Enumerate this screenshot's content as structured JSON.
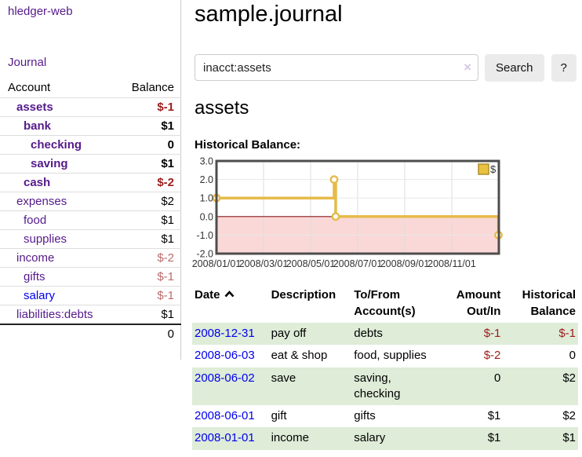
{
  "app": {
    "brand": "hledger-web",
    "nav_journal": "Journal"
  },
  "sidebar": {
    "header": {
      "account": "Account",
      "balance": "Balance"
    },
    "rows": [
      {
        "label": "assets",
        "indent": 1,
        "bold": true,
        "amount": "$-1",
        "amount_style": "neg",
        "link": "purple"
      },
      {
        "label": "bank",
        "indent": 2,
        "bold": true,
        "amount": "$1",
        "amount_style": "pos",
        "link": "purple"
      },
      {
        "label": "checking",
        "indent": 3,
        "bold": true,
        "amount": "0",
        "amount_style": "pos",
        "link": "purple"
      },
      {
        "label": "saving",
        "indent": 3,
        "bold": true,
        "amount": "$1",
        "amount_style": "pos",
        "link": "purple"
      },
      {
        "label": "cash",
        "indent": 2,
        "bold": true,
        "amount": "$-2",
        "amount_style": "neg",
        "link": "purple"
      },
      {
        "label": "expenses",
        "indent": 1,
        "bold": false,
        "amount": "$2",
        "amount_style": "pos",
        "link": "purple"
      },
      {
        "label": "food",
        "indent": 2,
        "bold": false,
        "amount": "$1",
        "amount_style": "pos",
        "link": "purple"
      },
      {
        "label": "supplies",
        "indent": 2,
        "bold": false,
        "amount": "$1",
        "amount_style": "pos",
        "link": "purple"
      },
      {
        "label": "income",
        "indent": 1,
        "bold": false,
        "amount": "$-2",
        "amount_style": "neg-soft",
        "link": "purple"
      },
      {
        "label": "gifts",
        "indent": 2,
        "bold": false,
        "amount": "$-1",
        "amount_style": "neg-soft",
        "link": "purple"
      },
      {
        "label": "salary",
        "indent": 2,
        "bold": false,
        "amount": "$-1",
        "amount_style": "neg-soft",
        "link": "blue"
      },
      {
        "label": "liabilities:debts",
        "indent": 1,
        "bold": false,
        "amount": "$1",
        "amount_style": "pos",
        "link": "purple"
      }
    ],
    "total": "0"
  },
  "header": {
    "title": "sample.journal"
  },
  "search": {
    "query": "inacct:assets",
    "clear_icon": "×",
    "button": "Search",
    "help_button": "?"
  },
  "account_view": {
    "title": "assets",
    "chart_label": "Historical Balance:"
  },
  "chart_data": {
    "type": "line",
    "step": true,
    "series": [
      {
        "name": "$",
        "points": [
          [
            "2008-01-01",
            1
          ],
          [
            "2008-06-01",
            2
          ],
          [
            "2008-06-03",
            0
          ],
          [
            "2008-12-31",
            -1
          ]
        ]
      }
    ],
    "x_ticks": [
      "2008/01/01",
      "2008/03/01",
      "2008/05/01",
      "2008/07/01",
      "2008/09/01",
      "2008/11/01"
    ],
    "x_tick_months": [
      0,
      2,
      4,
      6,
      8,
      10
    ],
    "xlim_months": [
      0,
      12
    ],
    "y_ticks": [
      "3.0",
      "2.0",
      "1.0",
      "0.0",
      "-1.0",
      "-2.0"
    ],
    "ylim": [
      -2,
      3
    ],
    "legend": "$",
    "legend_position": "top-right",
    "colors": {
      "line": "#e5bb49",
      "marker_fill": "#ffffff",
      "negative_fill": "#fbd8d8",
      "zero_line": "#8b1a1a",
      "border": "#4d4d4d",
      "grid": "#dddddd",
      "grid_soft": "#e7e7e7",
      "legend_fill": "#e9c240",
      "legend_border": "#b08d28",
      "tick_text": "#333333"
    }
  },
  "register": {
    "columns": [
      "Date",
      "Description",
      "To/From Account(s)",
      "Amount Out/In",
      "Historical Balance"
    ],
    "sort_icon": "chevron-up",
    "rows": [
      {
        "date": "2008-12-31",
        "description": "pay off",
        "accounts": "debts",
        "amount": "$-1",
        "balance": "$-1"
      },
      {
        "date": "2008-06-03",
        "description": "eat & shop",
        "accounts": "food, supplies",
        "amount": "$-2",
        "balance": "0"
      },
      {
        "date": "2008-06-02",
        "description": "save",
        "accounts": "saving, checking",
        "amount": "0",
        "balance": "$2"
      },
      {
        "date": "2008-06-01",
        "description": "gift",
        "accounts": "gifts",
        "amount": "$1",
        "balance": "$2"
      },
      {
        "date": "2008-01-01",
        "description": "income",
        "accounts": "salary",
        "amount": "$1",
        "balance": "$1"
      }
    ]
  }
}
